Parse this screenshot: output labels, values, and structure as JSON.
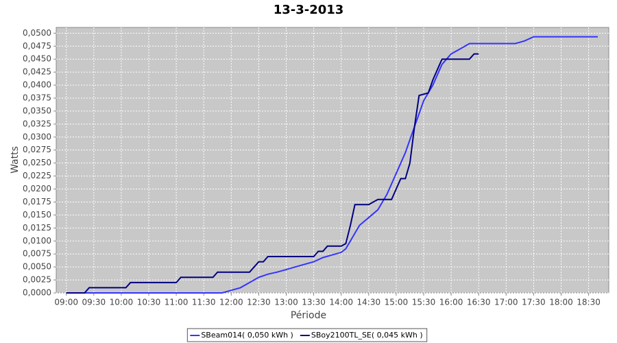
{
  "chart_data": {
    "type": "line",
    "title": "13-3-2013",
    "x_label": "Période",
    "y_label": "Watts",
    "xlim": [
      "08:49",
      "18:52"
    ],
    "xticks": [
      "09:00",
      "09:30",
      "10:00",
      "10:30",
      "11:00",
      "11:30",
      "12:00",
      "12:30",
      "13:00",
      "13:30",
      "14:00",
      "14:30",
      "15:00",
      "15:30",
      "16:00",
      "16:30",
      "17:00",
      "17:30",
      "18:00",
      "18:30"
    ],
    "ylim": [
      0,
      0.0511
    ],
    "yticks": [
      {
        "value": 0,
        "label": "0,0000"
      },
      {
        "value": 0.0025,
        "label": "0,0025"
      },
      {
        "value": 0.005,
        "label": "0,0050"
      },
      {
        "value": 0.0075,
        "label": "0,0075"
      },
      {
        "value": 0.01,
        "label": "0,0100"
      },
      {
        "value": 0.0125,
        "label": "0,0125"
      },
      {
        "value": 0.015,
        "label": "0,0150"
      },
      {
        "value": 0.0175,
        "label": "0,0175"
      },
      {
        "value": 0.02,
        "label": "0,0200"
      },
      {
        "value": 0.0225,
        "label": "0,0225"
      },
      {
        "value": 0.025,
        "label": "0,0250"
      },
      {
        "value": 0.0275,
        "label": "0,0275"
      },
      {
        "value": 0.03,
        "label": "0,0300"
      },
      {
        "value": 0.0325,
        "label": "0,0325"
      },
      {
        "value": 0.035,
        "label": "0,0350"
      },
      {
        "value": 0.0375,
        "label": "0,0375"
      },
      {
        "value": 0.04,
        "label": "0,0400"
      },
      {
        "value": 0.0425,
        "label": "0,0425"
      },
      {
        "value": 0.045,
        "label": "0,0450"
      },
      {
        "value": 0.0475,
        "label": "0,0475"
      },
      {
        "value": 0.05,
        "label": "0,0500"
      }
    ],
    "grid": true,
    "legend": "bottom",
    "series": [
      {
        "name": "SBeam014( 0,050 kWh )",
        "color": "#3333ff",
        "x": [
          "09:00",
          "11:50",
          "12:00",
          "12:10",
          "12:20",
          "12:30",
          "12:40",
          "12:50",
          "13:00",
          "13:10",
          "13:20",
          "13:30",
          "13:40",
          "13:50",
          "14:00",
          "14:05",
          "14:10",
          "14:20",
          "14:30",
          "14:40",
          "14:50",
          "15:00",
          "15:10",
          "15:20",
          "15:30",
          "15:40",
          "15:50",
          "16:00",
          "16:10",
          "16:20",
          "17:10",
          "17:20",
          "17:30",
          "18:40"
        ],
        "values": [
          0,
          0,
          0.0005,
          0.001,
          0.002,
          0.003,
          0.0036,
          0.004,
          0.0045,
          0.005,
          0.0055,
          0.006,
          0.0068,
          0.0073,
          0.0078,
          0.0085,
          0.01,
          0.013,
          0.0145,
          0.016,
          0.019,
          0.023,
          0.027,
          0.032,
          0.037,
          0.04,
          0.044,
          0.046,
          0.047,
          0.048,
          0.048,
          0.0485,
          0.0493,
          0.0493
        ]
      },
      {
        "name": "SBoy2100TL_SE( 0,045 kWh )",
        "color": "#000080",
        "x": [
          "09:00",
          "09:20",
          "09:25",
          "10:05",
          "10:10",
          "11:00",
          "11:05",
          "11:40",
          "11:45",
          "12:20",
          "12:30",
          "12:35",
          "12:40",
          "13:30",
          "13:35",
          "13:40",
          "13:45",
          "14:00",
          "14:05",
          "14:10",
          "14:15",
          "14:30",
          "14:35",
          "14:40",
          "14:55",
          "15:00",
          "15:05",
          "15:10",
          "15:15",
          "15:20",
          "15:25",
          "15:35",
          "15:40",
          "15:50",
          "16:20",
          "16:25",
          "16:30"
        ],
        "values": [
          0,
          0,
          0.001,
          0.001,
          0.002,
          0.002,
          0.003,
          0.003,
          0.004,
          0.004,
          0.006,
          0.006,
          0.007,
          0.007,
          0.008,
          0.008,
          0.009,
          0.009,
          0.0095,
          0.013,
          0.017,
          0.017,
          0.0175,
          0.018,
          0.018,
          0.02,
          0.022,
          0.022,
          0.025,
          0.032,
          0.038,
          0.0385,
          0.041,
          0.045,
          0.045,
          0.046,
          0.046
        ]
      }
    ]
  }
}
